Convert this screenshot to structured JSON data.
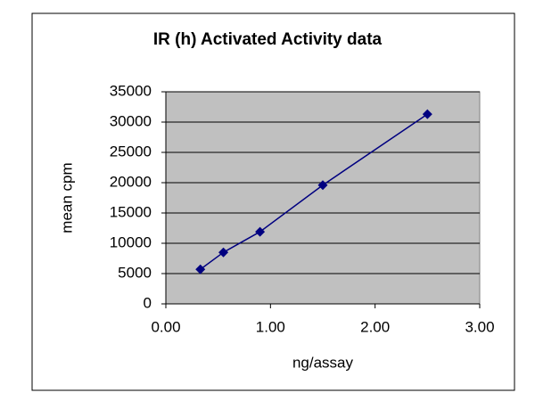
{
  "chart_data": {
    "type": "line",
    "title": "IR (h) Activated Activity data",
    "x_label": "ng/assay",
    "y_label": "mean cpm",
    "x": [
      0.33,
      0.55,
      0.9,
      1.5,
      2.5
    ],
    "values": [
      5700,
      8500,
      11900,
      19600,
      31300
    ],
    "color": "#000080",
    "plot_background": "#c0c0c0",
    "grid": true,
    "xlim": [
      0,
      3
    ],
    "xticks": [
      {
        "value": 0,
        "label": "0.00"
      },
      {
        "value": 1,
        "label": "1.00"
      },
      {
        "value": 2,
        "label": "2.00"
      },
      {
        "value": 3,
        "label": "3.00"
      }
    ],
    "ylim": [
      0,
      35000
    ],
    "yticks": [
      0,
      5000,
      10000,
      15000,
      20000,
      25000,
      30000,
      35000
    ]
  }
}
